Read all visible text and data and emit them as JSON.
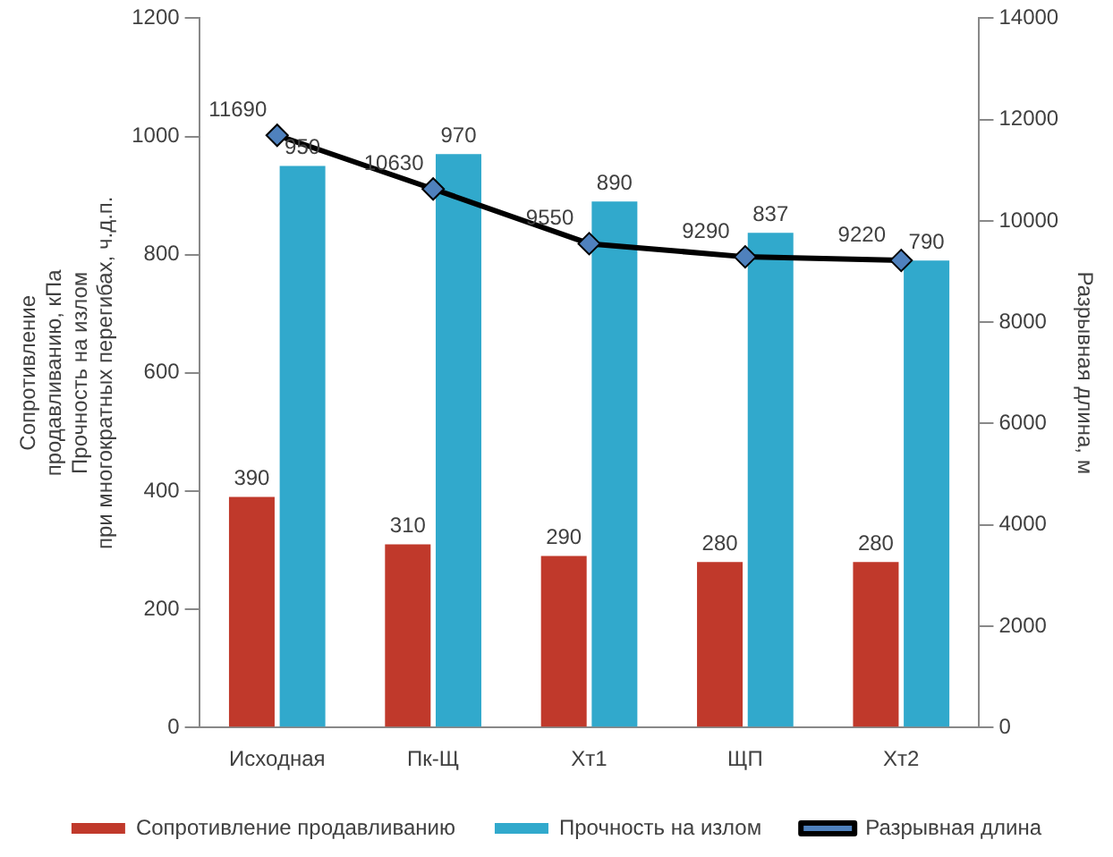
{
  "chart_data": {
    "type": "bar",
    "categories": [
      "Исходная",
      "Пк-Щ",
      "Хт1",
      "ЩП",
      "Хт2"
    ],
    "ylabel": "Сопротивление\nпродавливанию, кПа\nПрочность на излом\nпри многократных перегибах, ч.д.п.",
    "y2label": "Разрывная длина, м",
    "series": [
      {
        "name": "Сопротивление продавливанию",
        "color": "#c0392b",
        "values": [
          390,
          310,
          290,
          280,
          280
        ]
      },
      {
        "name": "Прочность на излом",
        "color": "#31a9cc",
        "values": [
          950,
          970,
          890,
          837,
          790
        ]
      },
      {
        "name": "Разрывная длина",
        "type": "line",
        "axis": "y2",
        "color": "#000000",
        "values": [
          11690,
          10630,
          9550,
          9290,
          9220
        ]
      }
    ],
    "ylim": [
      0,
      1200
    ],
    "yticks": [
      0,
      200,
      400,
      600,
      800,
      1000,
      1200
    ],
    "y2lim": [
      0,
      14000
    ],
    "y2ticks": [
      0,
      2000,
      4000,
      6000,
      8000,
      10000,
      12000,
      14000
    ],
    "data_labels": true,
    "legend": "bottom",
    "marker": "diamond"
  }
}
